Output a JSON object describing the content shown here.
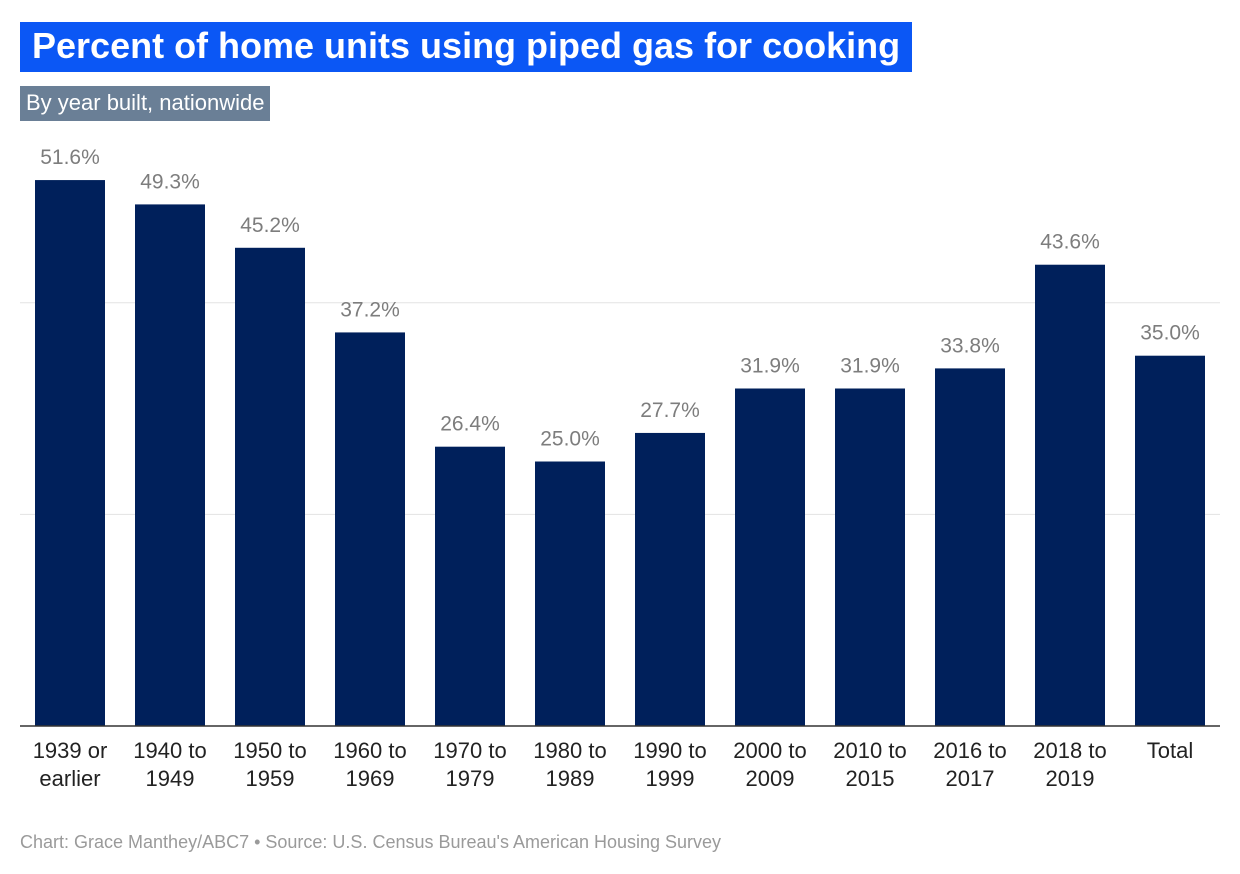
{
  "title": "Percent of home units using piped gas for cooking",
  "subtitle": "By year built, nationwide",
  "footer": "Chart: Grace Manthey/ABC7 • Source: U.S. Census Bureau's American Housing Survey",
  "colors": {
    "bar": "#00205b",
    "title_bg": "#0b57f5",
    "subtitle_bg": "#6a7f96",
    "grid": "#e3e3e3",
    "axis": "#333333"
  },
  "chart_data": {
    "type": "bar",
    "title": "Percent of home units using piped gas for cooking",
    "subtitle": "By year built, nationwide",
    "categories": [
      [
        "1939 or",
        "earlier"
      ],
      [
        "1940 to",
        "1949"
      ],
      [
        "1950 to",
        "1959"
      ],
      [
        "1960 to",
        "1969"
      ],
      [
        "1970 to",
        "1979"
      ],
      [
        "1980 to",
        "1989"
      ],
      [
        "1990 to",
        "1999"
      ],
      [
        "2000 to",
        "2009"
      ],
      [
        "2010 to",
        "2015"
      ],
      [
        "2016 to",
        "2017"
      ],
      [
        "2018 to",
        "2019"
      ],
      [
        "Total"
      ]
    ],
    "values": [
      51.6,
      49.3,
      45.2,
      37.2,
      26.4,
      25.0,
      27.7,
      31.9,
      31.9,
      33.8,
      43.6,
      35.0
    ],
    "value_labels": [
      "51.6%",
      "49.3%",
      "45.2%",
      "37.2%",
      "26.4%",
      "25.0%",
      "27.7%",
      "31.9%",
      "31.9%",
      "33.8%",
      "43.6%",
      "35.0%"
    ],
    "ylim": [
      0,
      60
    ],
    "gridlines": [
      20,
      40
    ],
    "grid": true,
    "legend": "none",
    "xlabel": "",
    "ylabel": ""
  }
}
